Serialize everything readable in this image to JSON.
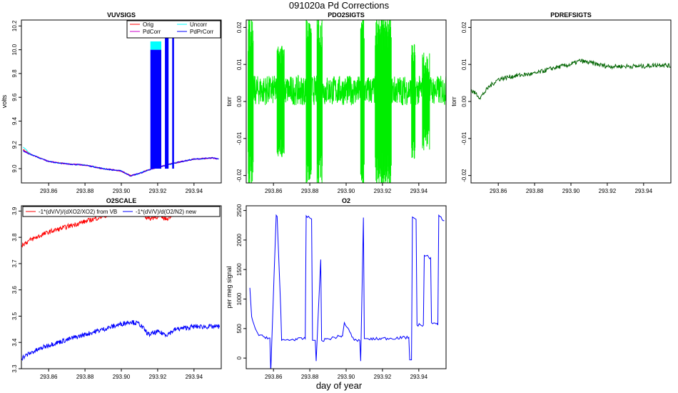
{
  "figure": {
    "title": "091020a   Pd Corrections",
    "xlabel": "day of year"
  },
  "colors": {
    "orig": "#ff0000",
    "uncorr": "#00ffff",
    "pdcorr": "#cc00cc",
    "pdprcorr": "#0000ff",
    "pdo2": "#00ee00",
    "pdref": "#006400"
  },
  "chart_data": [
    {
      "id": "vuvsigs",
      "type": "line",
      "title": "VUVSIGS",
      "ylabel": "volts",
      "xlim": [
        293.845,
        293.955
      ],
      "ylim": [
        8.88,
        10.25
      ],
      "xticks": [
        "293.86",
        "293.88",
        "293.90",
        "293.92",
        "293.94"
      ],
      "yticks": [
        "9.0",
        "9.2",
        "9.4",
        "9.6",
        "9.8",
        "10.0",
        "10.2"
      ],
      "legend": [
        "Orig",
        "Uncorr",
        "PdCorr",
        "PdPrCorr"
      ],
      "legend_position": "top-right",
      "series": [
        {
          "name": "Orig",
          "x": [
            293.846,
            293.85,
            293.86,
            293.87,
            293.88,
            293.89,
            293.9,
            293.905,
            293.91,
            293.915,
            293.92,
            293.93,
            293.94,
            293.95,
            293.954
          ],
          "y": [
            9.16,
            9.12,
            9.06,
            9.04,
            9.03,
            9.0,
            8.98,
            8.94,
            8.96,
            8.99,
            9.01,
            9.05,
            9.08,
            9.09,
            9.08
          ]
        },
        {
          "name": "Uncorr",
          "x": [
            293.846,
            293.85,
            293.86,
            293.87,
            293.88,
            293.89,
            293.9,
            293.905,
            293.91,
            293.915,
            293.92,
            293.93,
            293.94,
            293.95,
            293.954
          ],
          "y": [
            9.18,
            9.12,
            9.06,
            9.04,
            9.03,
            9.0,
            8.98,
            8.94,
            8.96,
            8.99,
            9.01,
            9.05,
            9.08,
            9.09,
            9.08
          ]
        },
        {
          "name": "PdCorr",
          "x": [
            293.846,
            293.85,
            293.86,
            293.87,
            293.88,
            293.89,
            293.9,
            293.905,
            293.91,
            293.915,
            293.92,
            293.93,
            293.94,
            293.95,
            293.954
          ],
          "y": [
            9.15,
            9.12,
            9.06,
            9.04,
            9.03,
            9.0,
            8.98,
            8.94,
            8.96,
            8.99,
            9.01,
            9.05,
            9.08,
            9.09,
            9.08
          ]
        },
        {
          "name": "PdPrCorr",
          "x": [
            293.846,
            293.85,
            293.86,
            293.87,
            293.88,
            293.89,
            293.9,
            293.905,
            293.91,
            293.915,
            293.92,
            293.93,
            293.94,
            293.95,
            293.954
          ],
          "y": [
            9.15,
            9.12,
            9.06,
            9.04,
            9.03,
            9.0,
            8.98,
            8.94,
            8.96,
            8.99,
            9.01,
            9.05,
            9.08,
            9.09,
            9.08
          ]
        }
      ],
      "spikes": [
        [
          293.916,
          293.922,
          10.0
        ],
        [
          293.924,
          293.926,
          10.25
        ],
        [
          293.928,
          293.929,
          10.25
        ]
      ]
    },
    {
      "id": "pdo2sigts",
      "type": "line",
      "title": "PDO2SIGTS",
      "ylabel": "torr",
      "xlim": [
        293.845,
        293.955
      ],
      "ylim": [
        -0.022,
        0.022
      ],
      "xticks": [
        "293.86",
        "293.88",
        "293.90",
        "293.92",
        "293.94"
      ],
      "yticks": [
        "-0.02",
        "-0.01",
        "0.00",
        "0.01",
        "0.02"
      ],
      "series": [
        {
          "name": "",
          "x": [
            293.846,
            293.955
          ],
          "y": [
            0.003,
            0.003
          ],
          "noise": 0.004
        }
      ],
      "bursts": [
        [
          293.846,
          293.849,
          0.022
        ],
        [
          293.862,
          293.866,
          0.014
        ],
        [
          293.878,
          293.881,
          0.022
        ],
        [
          293.884,
          293.887,
          0.022
        ],
        [
          293.908,
          293.91,
          0.022
        ],
        [
          293.916,
          293.925,
          0.022
        ],
        [
          293.936,
          293.938,
          0.016
        ],
        [
          293.942,
          293.946,
          0.012
        ]
      ]
    },
    {
      "id": "pdrefsigts",
      "type": "line",
      "title": "PDREFSIGTS",
      "ylabel": "torr",
      "xlim": [
        293.845,
        293.955
      ],
      "ylim": [
        -0.022,
        0.022
      ],
      "xticks": [
        "293.86",
        "293.88",
        "293.90",
        "293.92",
        "293.94"
      ],
      "yticks": [
        "-0.02",
        "-0.01",
        "0.00",
        "0.01",
        "0.02"
      ],
      "series": [
        {
          "name": "",
          "x": [
            293.845,
            293.848,
            293.85,
            293.855,
            293.86,
            293.87,
            293.88,
            293.89,
            293.895,
            293.9,
            293.905,
            293.91,
            293.92,
            293.93,
            293.94,
            293.95,
            293.955
          ],
          "y": [
            0.003,
            0.002,
            0.001,
            0.004,
            0.006,
            0.007,
            0.0075,
            0.009,
            0.0095,
            0.01,
            0.011,
            0.0105,
            0.0095,
            0.0095,
            0.0095,
            0.01,
            0.0095
          ]
        }
      ]
    },
    {
      "id": "o2scale",
      "type": "line",
      "title": "O2SCALE",
      "ylabel": "",
      "xlim": [
        293.845,
        293.955
      ],
      "ylim": [
        3.3,
        3.92
      ],
      "xticks": [
        "293.86",
        "293.88",
        "293.90",
        "293.92",
        "293.94"
      ],
      "yticks": [
        "3.3",
        "3.4",
        "3.5",
        "3.6",
        "3.7",
        "3.8",
        "3.9"
      ],
      "legend": [
        "-1*(dV/V)/(dXO2/XO2) from VB",
        "-1*(dV/V)/d(O2/N2) new"
      ],
      "legend_position": "top",
      "series": [
        {
          "name": "-1*(dV/V)/(dXO2/XO2) from VB",
          "x": [
            293.845,
            293.85,
            293.86,
            293.87,
            293.88,
            293.89,
            293.9,
            293.905,
            293.91,
            293.915,
            293.92,
            293.925,
            293.93,
            293.94,
            293.95,
            293.954
          ],
          "y": [
            3.77,
            3.79,
            3.82,
            3.84,
            3.86,
            3.88,
            3.9,
            3.91,
            3.9,
            3.87,
            3.88,
            3.87,
            3.9,
            3.9,
            3.89,
            3.89
          ]
        },
        {
          "name": "-1*(dV/V)/d(O2/N2) new",
          "x": [
            293.845,
            293.85,
            293.86,
            293.87,
            293.88,
            293.89,
            293.9,
            293.905,
            293.91,
            293.915,
            293.92,
            293.925,
            293.93,
            293.94,
            293.95,
            293.954
          ],
          "y": [
            3.34,
            3.36,
            3.39,
            3.41,
            3.43,
            3.45,
            3.47,
            3.48,
            3.47,
            3.43,
            3.44,
            3.43,
            3.45,
            3.46,
            3.46,
            3.46
          ]
        }
      ]
    },
    {
      "id": "o2",
      "type": "line",
      "title": "O2",
      "ylabel": "per meg signal",
      "xlim": [
        293.845,
        293.955
      ],
      "ylim": [
        -180,
        2580
      ],
      "xticks": [
        "293.86",
        "293.88",
        "293.90",
        "293.92",
        "293.94"
      ],
      "yticks": [
        "0",
        "500",
        "1000",
        "1500",
        "2000",
        "2500"
      ],
      "series": [
        {
          "name": "",
          "x": [
            293.847,
            293.848,
            293.85,
            293.852,
            293.858,
            293.8585,
            293.8615,
            293.862,
            293.864,
            293.8645,
            293.8775,
            293.878,
            293.881,
            293.8815,
            293.883,
            293.8835,
            293.886,
            293.8865,
            293.898,
            293.899,
            293.904,
            293.9045,
            293.9075,
            293.908,
            293.9095,
            293.91,
            293.912,
            293.9125,
            293.9345,
            293.935,
            293.936,
            293.9365,
            293.9385,
            293.939,
            293.9425,
            293.943,
            293.9465,
            293.947,
            293.9505,
            293.951,
            293.954
          ],
          "y": [
            1190,
            700,
            500,
            380,
            340,
            -240,
            2420,
            2400,
            820,
            300,
            330,
            2410,
            2360,
            300,
            300,
            -50,
            1670,
            300,
            380,
            600,
            330,
            300,
            300,
            -50,
            2380,
            330,
            330,
            320,
            350,
            -30,
            -30,
            2390,
            2350,
            560,
            560,
            1740,
            1700,
            600,
            560,
            2420,
            2330
          ]
        }
      ]
    }
  ]
}
